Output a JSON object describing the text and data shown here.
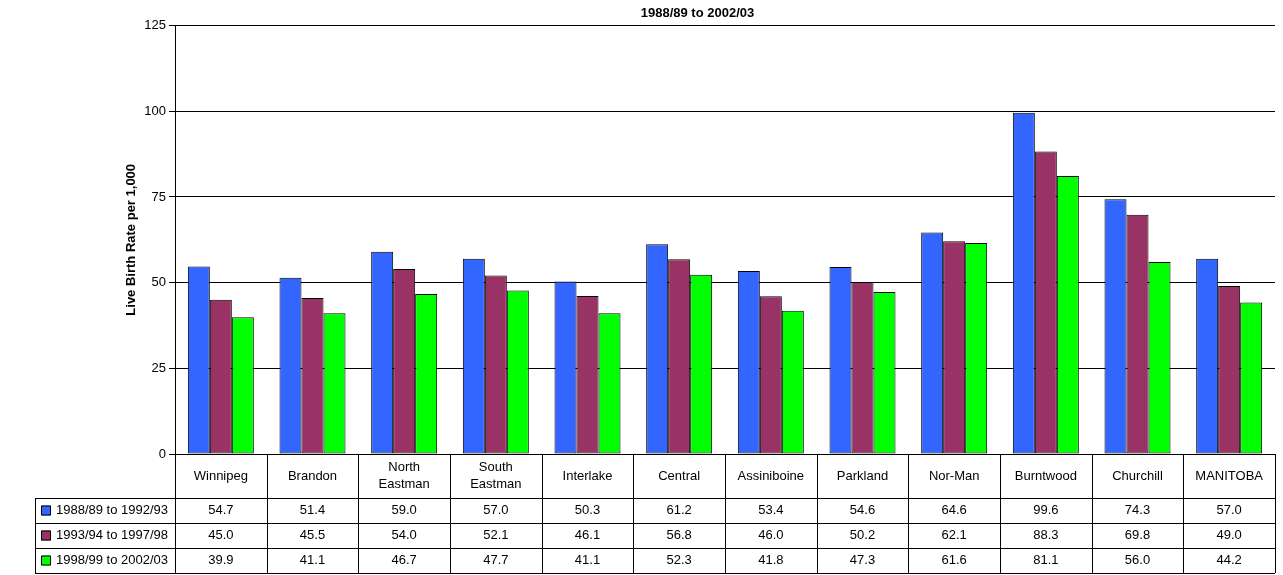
{
  "chart_data": {
    "type": "bar",
    "title": "1988/89 to 2002/03",
    "ylabel": "Live Birth Rate per 1,000",
    "categories": [
      "Winnipeg",
      "Brandon",
      "North Eastman",
      "South Eastman",
      "Interlake",
      "Central",
      "Assiniboine",
      "Parkland",
      "Nor-Man",
      "Burntwood",
      "Churchill",
      "MANITOBA"
    ],
    "series": [
      {
        "name": "1988/89 to 1992/93",
        "color": "#3366ff",
        "values": [
          54.7,
          51.4,
          59.0,
          57.0,
          50.3,
          61.2,
          53.4,
          54.6,
          64.6,
          99.6,
          74.3,
          57.0
        ],
        "value_labels": [
          "54.7",
          "51.4",
          "59.0",
          "57.0",
          "50.3",
          "61.2",
          "53.4",
          "54.6",
          "64.6",
          "99.6",
          "74.3",
          "57.0"
        ]
      },
      {
        "name": "1993/94 to 1997/98",
        "color": "#993366",
        "values": [
          45.0,
          45.5,
          54.0,
          52.1,
          46.1,
          56.8,
          46.0,
          50.2,
          62.1,
          88.3,
          69.8,
          49.0
        ],
        "value_labels": [
          "45.0",
          "45.5",
          "54.0",
          "52.1",
          "46.1",
          "56.8",
          "46.0",
          "50.2",
          "62.1",
          "88.3",
          "69.8",
          "49.0"
        ]
      },
      {
        "name": "1998/99 to 2002/03",
        "color": "#00ff00",
        "values": [
          39.9,
          41.1,
          46.7,
          47.7,
          41.1,
          52.3,
          41.8,
          47.3,
          61.6,
          81.1,
          56.0,
          44.2
        ],
        "value_labels": [
          "39.9",
          "41.1",
          "46.7",
          "47.7",
          "41.1",
          "52.3",
          "41.8",
          "47.3",
          "61.6",
          "81.1",
          "56.0",
          "44.2"
        ]
      }
    ],
    "ylim": [
      0,
      125
    ],
    "yticks": [
      0,
      25,
      50,
      75,
      100,
      125
    ],
    "grid": "y",
    "legend": "bottom left"
  }
}
